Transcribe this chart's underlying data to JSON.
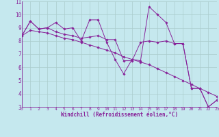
{
  "xlabel": "Windchill (Refroidissement éolien,°C)",
  "bg_color": "#c5e8ee",
  "line_color": "#882299",
  "grid_color": "#aacccc",
  "xlim": [
    0,
    23
  ],
  "ylim": [
    3,
    11
  ],
  "xticks": [
    0,
    1,
    2,
    3,
    4,
    5,
    6,
    7,
    8,
    9,
    10,
    11,
    12,
    13,
    14,
    15,
    16,
    17,
    18,
    19,
    20,
    21,
    22,
    23
  ],
  "yticks": [
    3,
    4,
    5,
    6,
    7,
    8,
    9,
    10,
    11
  ],
  "series": [
    [
      8.4,
      9.5,
      8.9,
      9.0,
      9.4,
      8.9,
      9.0,
      8.0,
      9.6,
      9.6,
      7.9,
      6.6,
      5.5,
      6.6,
      6.5,
      10.6,
      10.0,
      9.4,
      7.8,
      7.8,
      4.4,
      4.4,
      3.0,
      3.5
    ],
    [
      8.4,
      9.5,
      8.9,
      9.0,
      8.7,
      8.5,
      8.4,
      8.2,
      8.3,
      8.4,
      8.1,
      8.1,
      6.5,
      6.5,
      7.9,
      8.0,
      7.9,
      8.0,
      7.8,
      7.8,
      4.4,
      4.4,
      3.0,
      3.5
    ],
    [
      8.4,
      8.8,
      8.7,
      8.6,
      8.4,
      8.2,
      8.1,
      7.9,
      7.7,
      7.5,
      7.3,
      7.1,
      6.8,
      6.6,
      6.4,
      6.2,
      5.9,
      5.6,
      5.3,
      5.0,
      4.7,
      4.4,
      4.1,
      3.8
    ]
  ]
}
